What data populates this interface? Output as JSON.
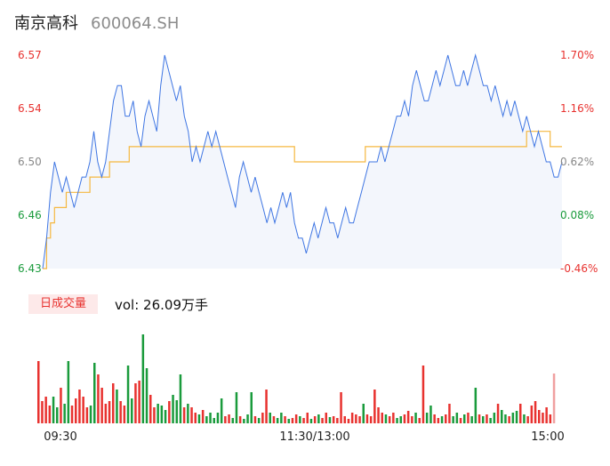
{
  "stock": {
    "name": "南京高科",
    "code": "600064.SH"
  },
  "volume_panel": {
    "label": "日成交量",
    "text": "vol: 26.09万手"
  },
  "colors": {
    "price_line": "#3f76e3",
    "avg_line": "#f5b840",
    "up": "#e8322f",
    "down": "#1a9b3c",
    "neutral": "#888888",
    "area": "#f3f6fc"
  },
  "chart_data": [
    {
      "type": "line",
      "title": "",
      "series": [],
      "price_ticks": [
        "6.57",
        "6.54",
        "6.50",
        "6.46",
        "6.43"
      ],
      "pct_ticks": [
        "1.70%",
        "1.16%",
        "0.62%",
        "0.08%",
        "-0.46%"
      ],
      "ylim": [
        6.43,
        6.57
      ],
      "prev_close": 6.46,
      "time_labels": [
        "09:30",
        "11:30/13:00",
        "15:00"
      ],
      "grid": false,
      "price": [
        6.43,
        6.45,
        6.48,
        6.5,
        6.49,
        6.48,
        6.49,
        6.48,
        6.47,
        6.48,
        6.49,
        6.49,
        6.5,
        6.52,
        6.5,
        6.49,
        6.5,
        6.52,
        6.54,
        6.55,
        6.55,
        6.53,
        6.53,
        6.54,
        6.52,
        6.51,
        6.53,
        6.54,
        6.53,
        6.52,
        6.55,
        6.57,
        6.56,
        6.55,
        6.54,
        6.55,
        6.53,
        6.52,
        6.5,
        6.51,
        6.5,
        6.51,
        6.52,
        6.51,
        6.52,
        6.51,
        6.5,
        6.49,
        6.48,
        6.47,
        6.49,
        6.5,
        6.49,
        6.48,
        6.49,
        6.48,
        6.47,
        6.46,
        6.47,
        6.46,
        6.47,
        6.48,
        6.47,
        6.48,
        6.46,
        6.45,
        6.45,
        6.44,
        6.45,
        6.46,
        6.45,
        6.46,
        6.47,
        6.46,
        6.46,
        6.45,
        6.46,
        6.47,
        6.46,
        6.46,
        6.47,
        6.48,
        6.49,
        6.5,
        6.5,
        6.5,
        6.51,
        6.5,
        6.51,
        6.52,
        6.53,
        6.53,
        6.54,
        6.53,
        6.55,
        6.56,
        6.55,
        6.54,
        6.54,
        6.55,
        6.56,
        6.55,
        6.56,
        6.57,
        6.56,
        6.55,
        6.55,
        6.56,
        6.55,
        6.56,
        6.57,
        6.56,
        6.55,
        6.55,
        6.54,
        6.55,
        6.54,
        6.53,
        6.54,
        6.53,
        6.54,
        6.53,
        6.52,
        6.53,
        6.52,
        6.51,
        6.52,
        6.51,
        6.5,
        6.5,
        6.49,
        6.49,
        6.5
      ],
      "avg_price": [
        6.43,
        6.45,
        6.46,
        6.47,
        6.47,
        6.47,
        6.48,
        6.48,
        6.48,
        6.48,
        6.48,
        6.48,
        6.49,
        6.49,
        6.49,
        6.49,
        6.49,
        6.5,
        6.5,
        6.5,
        6.5,
        6.5,
        6.51,
        6.51,
        6.51,
        6.51,
        6.51,
        6.51,
        6.51,
        6.51,
        6.51,
        6.51,
        6.51,
        6.51,
        6.51,
        6.51,
        6.51,
        6.51,
        6.51,
        6.51,
        6.51,
        6.51,
        6.51,
        6.51,
        6.51,
        6.51,
        6.51,
        6.51,
        6.51,
        6.51,
        6.51,
        6.51,
        6.51,
        6.51,
        6.51,
        6.51,
        6.51,
        6.51,
        6.51,
        6.51,
        6.51,
        6.51,
        6.51,
        6.51,
        6.5,
        6.5,
        6.5,
        6.5,
        6.5,
        6.5,
        6.5,
        6.5,
        6.5,
        6.5,
        6.5,
        6.5,
        6.5,
        6.5,
        6.5,
        6.5,
        6.5,
        6.5,
        6.51,
        6.51,
        6.51,
        6.51,
        6.51,
        6.51,
        6.51,
        6.51,
        6.51,
        6.51,
        6.51,
        6.51,
        6.51,
        6.51,
        6.51,
        6.51,
        6.51,
        6.51,
        6.51,
        6.51,
        6.51,
        6.51,
        6.51,
        6.51,
        6.51,
        6.51,
        6.51,
        6.51,
        6.51,
        6.51,
        6.51,
        6.51,
        6.51,
        6.51,
        6.51,
        6.51,
        6.51,
        6.51,
        6.51,
        6.51,
        6.51,
        6.52,
        6.52,
        6.52,
        6.52,
        6.52,
        6.52,
        6.51,
        6.51,
        6.51,
        6.51
      ]
    },
    {
      "type": "bar",
      "title": "",
      "series": [],
      "volume": [
        70,
        25,
        30,
        20,
        30,
        18,
        40,
        22,
        70,
        20,
        28,
        38,
        30,
        18,
        20,
        68,
        55,
        40,
        22,
        25,
        45,
        38,
        25,
        20,
        65,
        28,
        45,
        48,
        100,
        62,
        32,
        18,
        22,
        20,
        15,
        25,
        32,
        26,
        55,
        18,
        22,
        18,
        12,
        10,
        15,
        8,
        12,
        6,
        12,
        28,
        8,
        10,
        6,
        35,
        8,
        5,
        10,
        35,
        8,
        6,
        12,
        38,
        12,
        8,
        6,
        12,
        8,
        5,
        6,
        10,
        8,
        6,
        12,
        5,
        8,
        10,
        6,
        12,
        7,
        8,
        6,
        35,
        8,
        5,
        12,
        10,
        8,
        22,
        10,
        8,
        38,
        18,
        12,
        10,
        8,
        12,
        6,
        8,
        10,
        14,
        8,
        12,
        6,
        65,
        12,
        20,
        10,
        6,
        8,
        10,
        22,
        8,
        12,
        6,
        10,
        12,
        8,
        40,
        10,
        8,
        10,
        6,
        12,
        22,
        15,
        10,
        8,
        12,
        14,
        22,
        10,
        8,
        20,
        25,
        15,
        12,
        18,
        10,
        56
      ]
    }
  ]
}
